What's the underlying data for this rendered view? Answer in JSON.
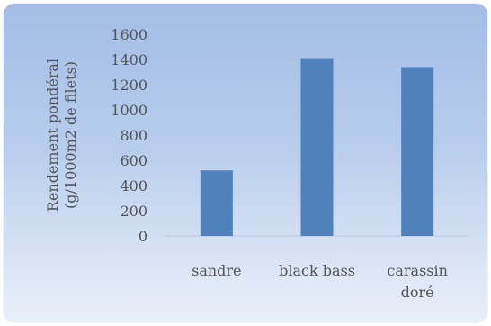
{
  "chart_data": {
    "type": "bar",
    "categories": [
      "sandre",
      "black bass",
      "carassin doré"
    ],
    "category_lines": [
      [
        "sandre"
      ],
      [
        "black bass"
      ],
      [
        "carassin",
        "doré"
      ]
    ],
    "values": [
      520,
      1410,
      1340
    ],
    "title": "",
    "xlabel": "",
    "ylabel": "Rendement pondéral (g/1000m2 de filets)",
    "ylabel_lines": [
      "Rendement pondéral",
      "(g/1000m2 de filets)"
    ],
    "ylim": [
      0,
      1600
    ],
    "yticks": [
      0,
      200,
      400,
      600,
      800,
      1000,
      1200,
      1400,
      1600
    ],
    "grid": false,
    "legend": "none",
    "bar_color": "#4f81bd"
  }
}
